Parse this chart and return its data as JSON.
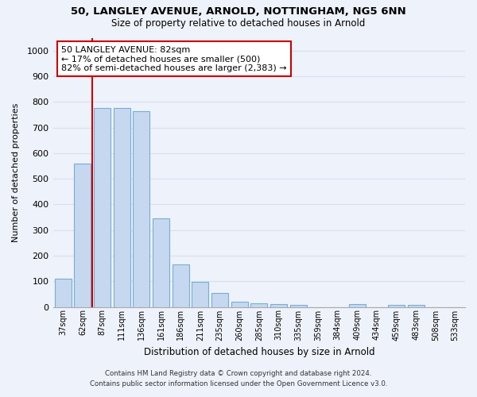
{
  "title1": "50, LANGLEY AVENUE, ARNOLD, NOTTINGHAM, NG5 6NN",
  "title2": "Size of property relative to detached houses in Arnold",
  "xlabel": "Distribution of detached houses by size in Arnold",
  "ylabel": "Number of detached properties",
  "categories": [
    "37sqm",
    "62sqm",
    "87sqm",
    "111sqm",
    "136sqm",
    "161sqm",
    "186sqm",
    "211sqm",
    "235sqm",
    "260sqm",
    "285sqm",
    "310sqm",
    "335sqm",
    "359sqm",
    "384sqm",
    "409sqm",
    "434sqm",
    "459sqm",
    "483sqm",
    "508sqm",
    "533sqm"
  ],
  "values": [
    110,
    560,
    775,
    775,
    765,
    345,
    165,
    98,
    55,
    20,
    15,
    12,
    8,
    0,
    0,
    10,
    0,
    8,
    8,
    0,
    0
  ],
  "bar_color": "#c5d8f0",
  "bar_edge_color": "#7aadd4",
  "vline_color": "#cc0000",
  "annotation_text": "50 LANGLEY AVENUE: 82sqm\n← 17% of detached houses are smaller (500)\n82% of semi-detached houses are larger (2,383) →",
  "annotation_box_color": "#cc0000",
  "background_color": "#eef2fa",
  "grid_color": "#d8dff0",
  "ylim": [
    0,
    1050
  ],
  "yticks": [
    0,
    100,
    200,
    300,
    400,
    500,
    600,
    700,
    800,
    900,
    1000
  ],
  "footnote1": "Contains HM Land Registry data © Crown copyright and database right 2024.",
  "footnote2": "Contains public sector information licensed under the Open Government Licence v3.0."
}
